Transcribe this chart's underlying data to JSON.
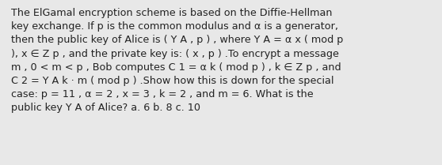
{
  "text": "The ElGamal encryption scheme is based on the Diffie-Hellman\nkey exchange. If p is the common modulus and α is a generator,\nthen the public key of Alice is ( Y A , p ) , where Y A = α x ( mod p\n), x ∈ Z p , and the private key is: ( x , p ) .To encrypt a message\nm , 0 < m < p , Bob computes C 1 = α k ( mod p ) , k ∈ Z p , and\nC 2 = Y A k · m ( mod p ) .Show how this is down for the special\ncase: p = 11 , α = 2 , x = 3 , k = 2 , and m = 6. What is the\npublic key Y A of Alice? a. 6 b. 8 c. 10",
  "bg_color": "#e8e8e8",
  "text_color": "#222222",
  "font_size": 9.2,
  "fig_width": 5.58,
  "fig_height": 2.09,
  "dpi": 100
}
